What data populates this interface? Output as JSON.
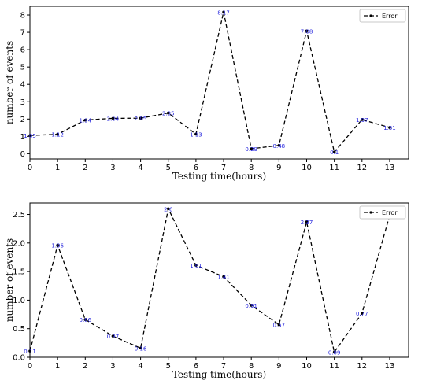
{
  "chart_data": [
    {
      "type": "line",
      "xlabel": "Testing time(hours)",
      "ylabel": "number of events",
      "x": [
        0,
        1,
        2,
        3,
        4,
        5,
        6,
        7,
        8,
        9,
        10,
        11,
        12,
        13
      ],
      "xlim": [
        0,
        13
      ],
      "ylim": [
        -0.3,
        8.5
      ],
      "yticks": [
        0,
        1,
        2,
        3,
        4,
        5,
        6,
        7,
        8
      ],
      "legend": "top-right",
      "grid": false,
      "series": [
        {
          "name": "Error",
          "values": [
            1.05,
            1.12,
            1.94,
            2.04,
            2.05,
            2.35,
            1.13,
            8.17,
            0.29,
            0.48,
            7.08,
            0.1,
            1.97,
            1.51
          ],
          "labels": [
            "1.05",
            "1.12",
            "1.94",
            "2.04",
            "2.05",
            "2.35",
            "1.13",
            "8.17",
            "0.29",
            "0.48",
            "7.08",
            "0.1",
            "1.97",
            "1.51"
          ]
        }
      ]
    },
    {
      "type": "line",
      "xlabel": "Testing time(hours)",
      "ylabel": "number of events",
      "x": [
        0,
        1,
        2,
        3,
        4,
        5,
        6,
        7,
        8,
        9,
        10,
        11,
        12,
        13
      ],
      "xlim": [
        0,
        13
      ],
      "ylim": [
        0,
        2.7
      ],
      "yticks": [
        0.0,
        0.5,
        1.0,
        1.5,
        2.0,
        2.5
      ],
      "legend": "top-right",
      "grid": false,
      "series": [
        {
          "name": "Error",
          "values": [
            0.11,
            1.96,
            0.66,
            0.37,
            0.16,
            2.6,
            1.61,
            1.41,
            0.91,
            0.57,
            2.37,
            0.09,
            0.77,
            2.48
          ],
          "labels": [
            "0.11",
            "1.96",
            "0.66",
            "0.37",
            "0.16",
            "2.6",
            "1.61",
            "1.41",
            "0.91",
            "0.57",
            "2.37",
            "0.09",
            "0.77",
            "2.48"
          ]
        }
      ]
    }
  ]
}
